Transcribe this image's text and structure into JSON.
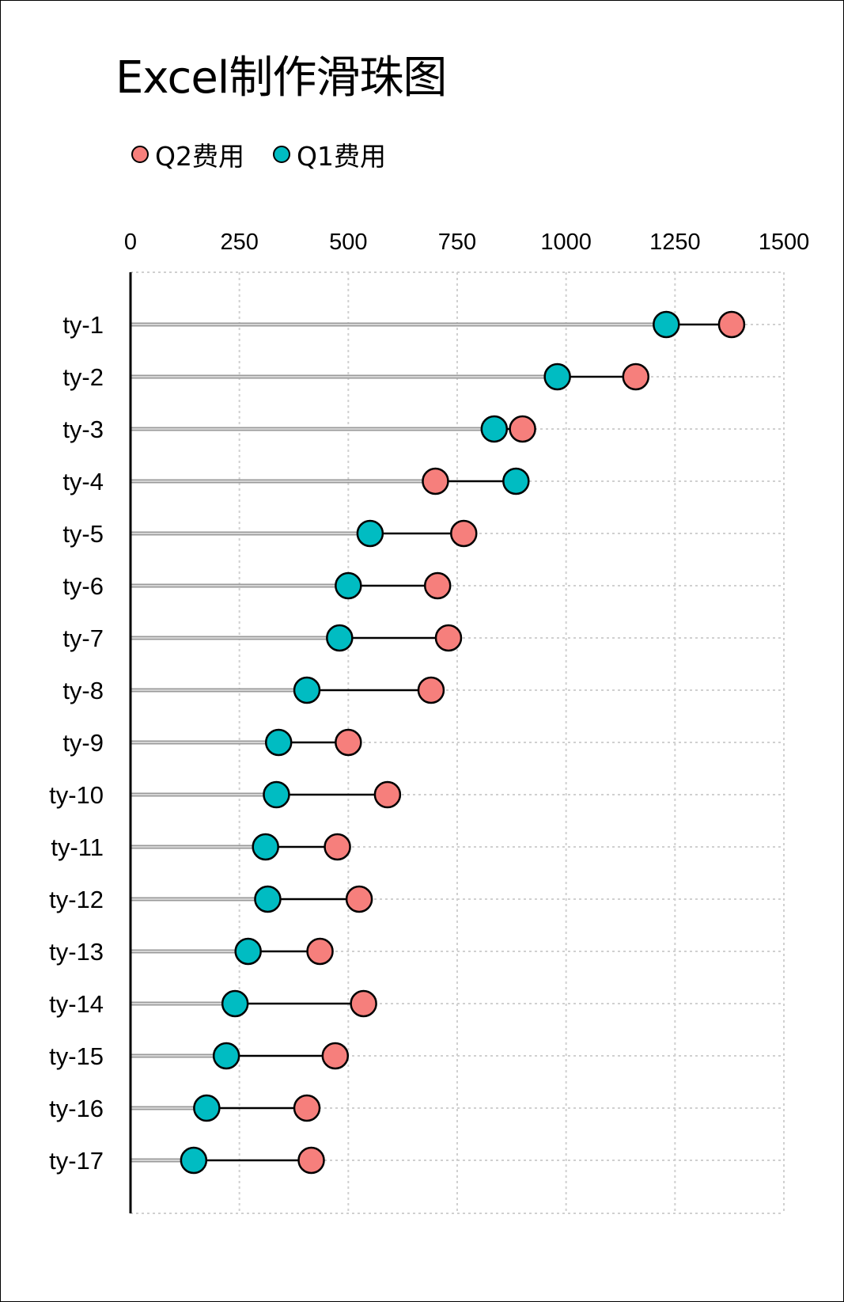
{
  "chart_data": {
    "type": "dumbbell",
    "title": "Excel制作滑珠图",
    "xlim": [
      0,
      1500
    ],
    "xticks": [
      0,
      250,
      500,
      750,
      1000,
      1250,
      1500
    ],
    "grid": true,
    "legend_position": "top-left",
    "categories": [
      "ty-1",
      "ty-2",
      "ty-3",
      "ty-4",
      "ty-5",
      "ty-6",
      "ty-7",
      "ty-8",
      "ty-9",
      "ty-10",
      "ty-11",
      "ty-12",
      "ty-13",
      "ty-14",
      "ty-15",
      "ty-16",
      "ty-17"
    ],
    "series": [
      {
        "name": "Q2费用",
        "color": "#f67f7c",
        "values": [
          1380,
          1160,
          900,
          700,
          765,
          705,
          730,
          690,
          500,
          590,
          475,
          525,
          435,
          535,
          470,
          405,
          415
        ]
      },
      {
        "name": "Q1费用",
        "color": "#00bcc2",
        "values": [
          1230,
          980,
          835,
          885,
          550,
          500,
          480,
          405,
          340,
          335,
          310,
          315,
          270,
          240,
          220,
          175,
          145
        ]
      }
    ]
  }
}
